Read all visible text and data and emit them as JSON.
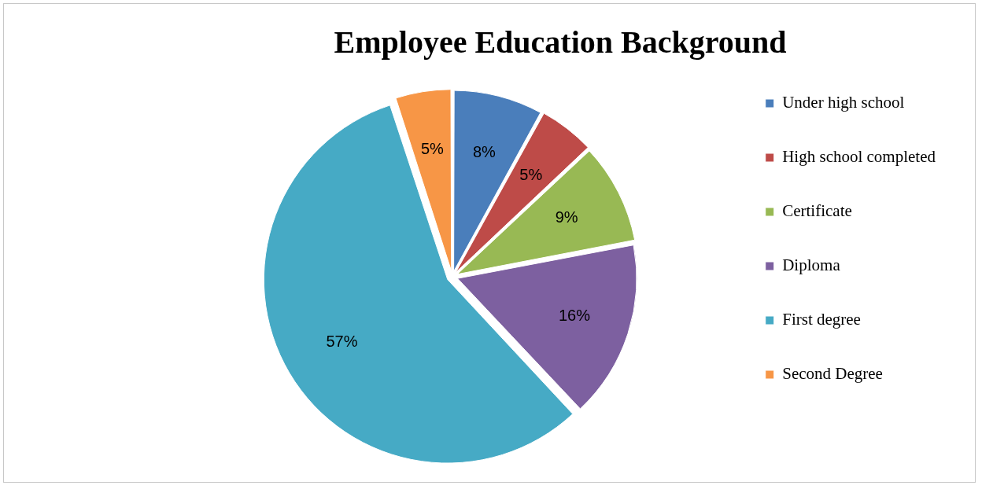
{
  "chart_data": {
    "type": "pie",
    "title": "Employee Education Background",
    "categories": [
      "Under high school",
      "High school completed",
      "Certificate",
      "Diploma",
      "First degree",
      "Second Degree"
    ],
    "values": [
      8,
      5,
      9,
      16,
      57,
      5
    ],
    "value_labels": [
      "8%",
      "5%",
      "9%",
      "16%",
      "57%",
      "5%"
    ],
    "colors": [
      "#4a7ebb",
      "#be4b48",
      "#98b954",
      "#7d60a0",
      "#46aac5",
      "#f79646"
    ],
    "legend": "right"
  }
}
